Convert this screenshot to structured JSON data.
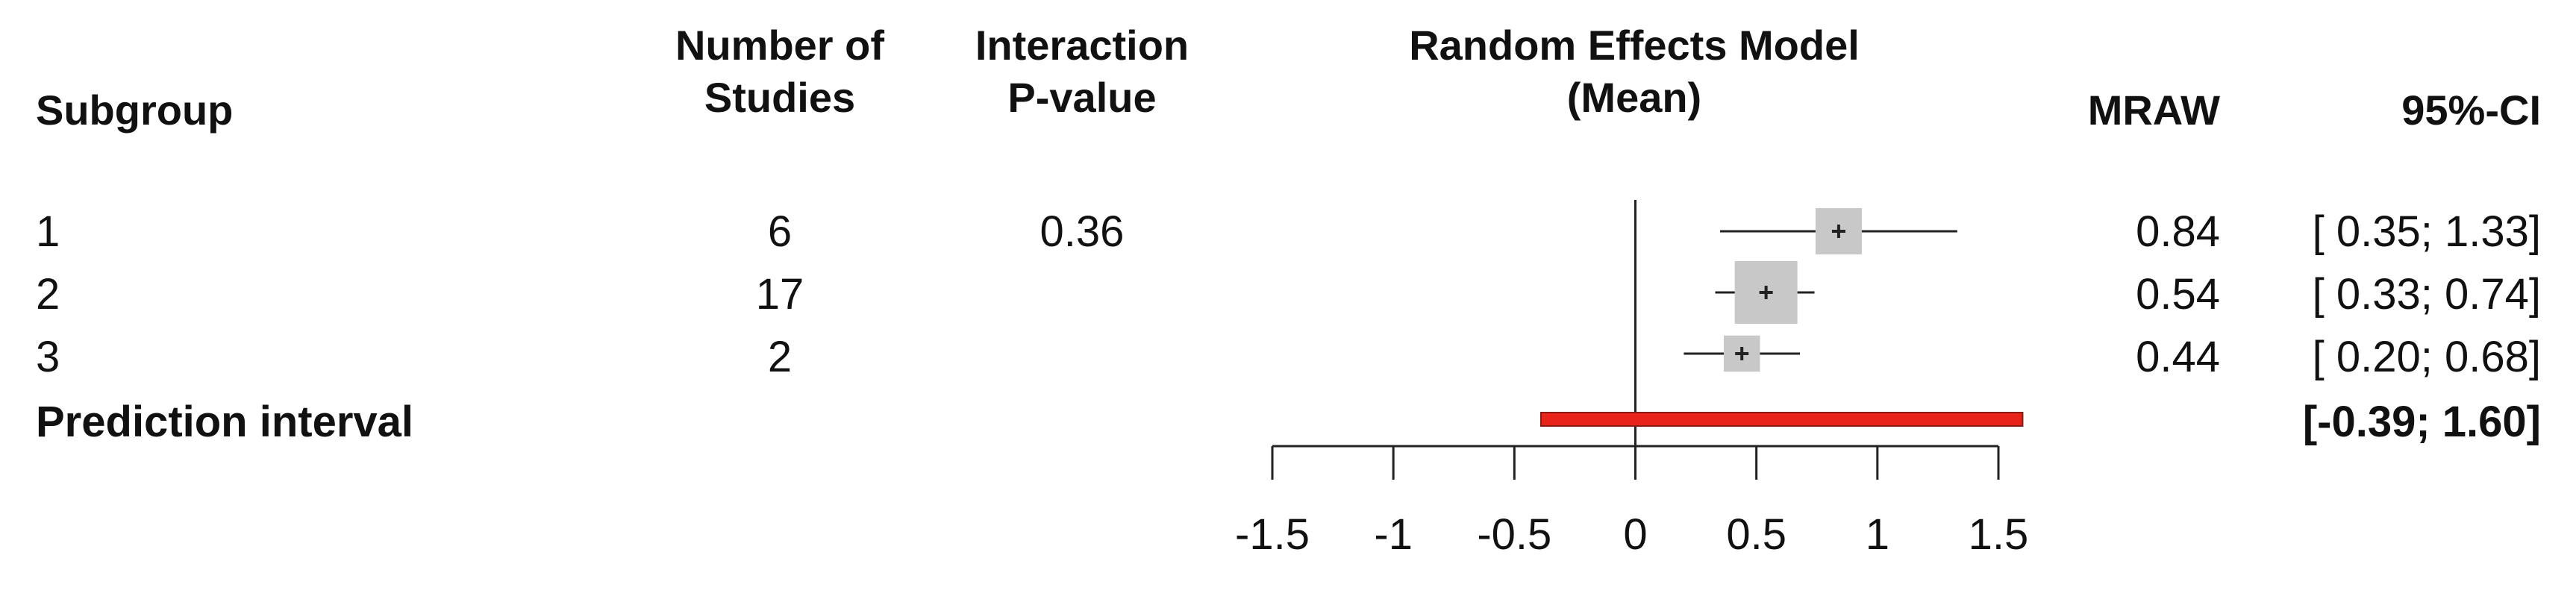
{
  "headers": {
    "subgroup": "Subgroup",
    "n_studies": [
      "Number of",
      "Studies"
    ],
    "interaction_p": [
      "Interaction",
      "P-value"
    ],
    "model": [
      "Random Effects Model",
      "(Mean)"
    ],
    "mraw": "MRAW",
    "ci": "95%-CI"
  },
  "rows": [
    {
      "subgroup": "1",
      "n_studies": "6",
      "interaction_p": "0.36",
      "mraw": "0.84",
      "ci": "[ 0.35; 1.33]"
    },
    {
      "subgroup": "2",
      "n_studies": "17",
      "interaction_p": "",
      "mraw": "0.54",
      "ci": "[ 0.33; 0.74]"
    },
    {
      "subgroup": "3",
      "n_studies": "2",
      "interaction_p": "",
      "mraw": "0.44",
      "ci": "[ 0.20; 0.68]"
    }
  ],
  "prediction": {
    "label": "Prediction interval",
    "ci": "[-0.39; 1.60]"
  },
  "chart_data": {
    "type": "forest",
    "xlim": [
      -1.5,
      1.5
    ],
    "reference_line": 0,
    "xticks": [
      -1.5,
      -1,
      -0.5,
      0,
      0.5,
      1,
      1.5
    ],
    "xtick_labels": [
      "-1.5",
      "-1",
      "-0.5",
      "0",
      "0.5",
      "1",
      "1.5"
    ],
    "points": [
      {
        "estimate": 0.84,
        "lower": 0.35,
        "upper": 1.33,
        "n": 6
      },
      {
        "estimate": 0.54,
        "lower": 0.33,
        "upper": 0.74,
        "n": 17
      },
      {
        "estimate": 0.44,
        "lower": 0.2,
        "upper": 0.68,
        "n": 2
      }
    ],
    "prediction_interval": {
      "lower": -0.39,
      "upper": 1.6
    },
    "colors": {
      "box": "#c8c8c8",
      "line": "#222222",
      "prediction": "#e8231a"
    }
  }
}
